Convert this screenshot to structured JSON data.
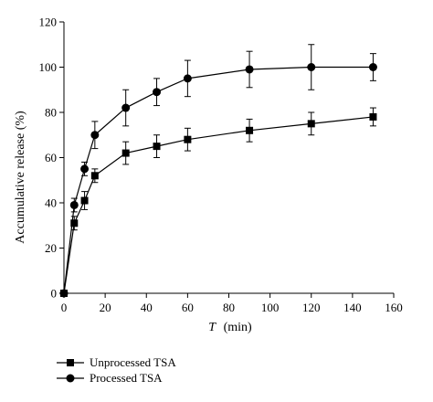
{
  "chart_data": {
    "type": "line",
    "title": "",
    "xlabel_var": "T",
    "xlabel_unit": "(min)",
    "ylabel": "Accumulative release (%)",
    "xlim": [
      0,
      160
    ],
    "ylim": [
      0,
      120
    ],
    "xticks": [
      0,
      20,
      40,
      60,
      80,
      100,
      120,
      140,
      160
    ],
    "yticks": [
      0,
      20,
      40,
      60,
      80,
      100,
      120
    ],
    "grid": false,
    "legend_position": "bottom-left",
    "series": [
      {
        "name": "Unprocessed TSA",
        "marker": "square",
        "color": "#000000",
        "x": [
          0,
          5,
          10,
          15,
          30,
          45,
          60,
          90,
          120,
          150
        ],
        "y": [
          0,
          31,
          41,
          52,
          62,
          65,
          68,
          72,
          75,
          78
        ],
        "err": [
          0,
          3,
          4,
          3,
          5,
          5,
          5,
          5,
          5,
          4
        ]
      },
      {
        "name": "Processed TSA",
        "marker": "circle",
        "color": "#000000",
        "x": [
          0,
          5,
          10,
          15,
          30,
          45,
          60,
          90,
          120,
          150
        ],
        "y": [
          0,
          39,
          55,
          70,
          82,
          89,
          95,
          99,
          100,
          100
        ],
        "err": [
          0,
          3,
          3,
          6,
          8,
          6,
          8,
          8,
          10,
          6
        ]
      }
    ]
  }
}
